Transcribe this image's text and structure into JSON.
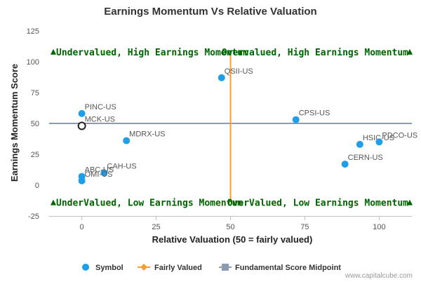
{
  "chart_data": {
    "type": "scatter",
    "title": "Earnings Momentum Vs Relative Valuation",
    "xlabel": "Relative Valuation (50 = fairly valued)",
    "ylabel": "Earnings Momentum Score",
    "xlim": [
      -11,
      111
    ],
    "ylim": [
      -25,
      125
    ],
    "x_ticks": [
      "0",
      "25",
      "50",
      "75",
      "100"
    ],
    "y_ticks": [
      "125",
      "100",
      "75",
      "50",
      "25",
      "0",
      "-25"
    ],
    "grid": false,
    "legend_position": "bottom",
    "quadrant_labels": {
      "top_left": "Undervalued, High Earnings Momentum",
      "top_right": "Overvalued, High Earnings Momentum",
      "bottom_left": "UnderValued, Low Earnings Momentum",
      "bottom_right": "OverValued, Low Earnings Momentum"
    },
    "fair_value_x": 50,
    "midpoint_y": 50,
    "highlighted_symbol": "MCK-US",
    "points": [
      {
        "label": "QSII-US",
        "x": 47,
        "y": 87
      },
      {
        "label": "PINC-US",
        "x": 0,
        "y": 58
      },
      {
        "label": "MCK-US",
        "x": 0,
        "y": 48
      },
      {
        "label": "MDRX-US",
        "x": 15,
        "y": 36
      },
      {
        "label": "CAH-US",
        "x": 7.5,
        "y": 10
      },
      {
        "label": "ABC-US",
        "x": 0,
        "y": 7
      },
      {
        "label": "OMI-US",
        "x": 0,
        "y": 3.5
      },
      {
        "label": "CPSI-US",
        "x": 72,
        "y": 53
      },
      {
        "label": "HSIC-US",
        "x": 93.5,
        "y": 33
      },
      {
        "label": "PDCO-US",
        "x": 100,
        "y": 35
      },
      {
        "label": "CERN-US",
        "x": 88.5,
        "y": 17
      }
    ],
    "legend": [
      "Symbol",
      "Fairly Valued",
      "Fundamental Score Midpoint"
    ],
    "colors": {
      "points": "#1f9fea",
      "fair_line": "#f5a12a",
      "midpoint_line": "#8e9aaf",
      "quadrant_text": "#006400",
      "arrows": "#006400"
    }
  },
  "credit": "www.capitalcube.com"
}
